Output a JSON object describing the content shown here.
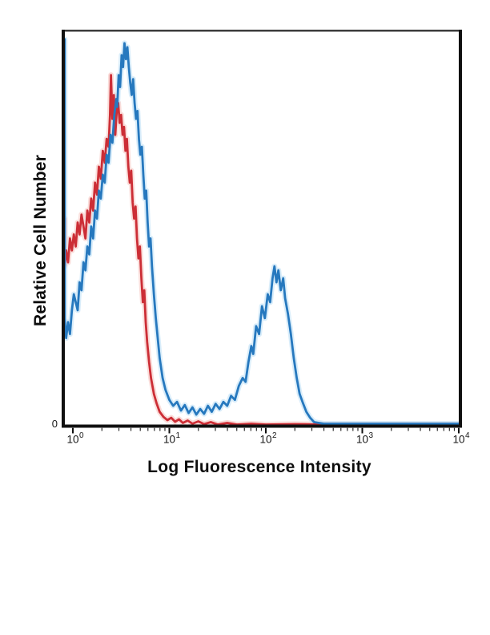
{
  "figure": {
    "xlabel": "Log Fluorescence Intensity",
    "ylabel": "Relative Cell Number",
    "y_zero_label": "0",
    "x_ticks": [
      {
        "base": "10",
        "exp": "0"
      },
      {
        "base": "10",
        "exp": "1"
      },
      {
        "base": "10",
        "exp": "2"
      },
      {
        "base": "10",
        "exp": "3"
      },
      {
        "base": "10",
        "exp": "4"
      }
    ]
  },
  "chart_data": {
    "type": "line",
    "title": "",
    "xlabel": "Log Fluorescence Intensity",
    "ylabel": "Relative Cell Number",
    "x_scale": "log10",
    "x_decades": [
      0,
      4
    ],
    "x_tick_labels": [
      "10^0",
      "10^1",
      "10^2",
      "10^3",
      "10^4"
    ],
    "ylim": [
      0,
      1
    ],
    "y_tick_labels": [
      "0"
    ],
    "grid": false,
    "legend": "none",
    "point_format": "[log10(x), relative_height 0..1]",
    "frame_color": "#101010",
    "series": [
      {
        "name": "red-curve",
        "color": "#cc2e36",
        "halo_color": "#f6c6c2",
        "points": [
          [
            -0.085,
            0.52
          ],
          [
            -0.085,
            0.4
          ],
          [
            -0.07,
            0.44
          ],
          [
            -0.05,
            0.41
          ],
          [
            -0.03,
            0.47
          ],
          [
            -0.01,
            0.44
          ],
          [
            0.01,
            0.48
          ],
          [
            0.03,
            0.45
          ],
          [
            0.05,
            0.51
          ],
          [
            0.07,
            0.48
          ],
          [
            0.09,
            0.53
          ],
          [
            0.11,
            0.5
          ],
          [
            0.13,
            0.47
          ],
          [
            0.15,
            0.54
          ],
          [
            0.17,
            0.51
          ],
          [
            0.19,
            0.57
          ],
          [
            0.21,
            0.54
          ],
          [
            0.23,
            0.61
          ],
          [
            0.25,
            0.58
          ],
          [
            0.27,
            0.65
          ],
          [
            0.29,
            0.62
          ],
          [
            0.31,
            0.69
          ],
          [
            0.33,
            0.66
          ],
          [
            0.35,
            0.72
          ],
          [
            0.37,
            0.7
          ],
          [
            0.385,
            0.78
          ],
          [
            0.395,
            0.88
          ],
          [
            0.41,
            0.77
          ],
          [
            0.425,
            0.83
          ],
          [
            0.44,
            0.73
          ],
          [
            0.455,
            0.79
          ],
          [
            0.47,
            0.81
          ],
          [
            0.485,
            0.76
          ],
          [
            0.5,
            0.78
          ],
          [
            0.515,
            0.73
          ],
          [
            0.53,
            0.75
          ],
          [
            0.545,
            0.69
          ],
          [
            0.56,
            0.72
          ],
          [
            0.575,
            0.65
          ],
          [
            0.59,
            0.61
          ],
          [
            0.605,
            0.64
          ],
          [
            0.62,
            0.56
          ],
          [
            0.635,
            0.52
          ],
          [
            0.65,
            0.55
          ],
          [
            0.665,
            0.47
          ],
          [
            0.68,
            0.42
          ],
          [
            0.695,
            0.45
          ],
          [
            0.71,
            0.37
          ],
          [
            0.725,
            0.31
          ],
          [
            0.74,
            0.34
          ],
          [
            0.755,
            0.26
          ],
          [
            0.77,
            0.21
          ],
          [
            0.79,
            0.16
          ],
          [
            0.81,
            0.12
          ],
          [
            0.84,
            0.08
          ],
          [
            0.87,
            0.055
          ],
          [
            0.9,
            0.035
          ],
          [
            0.94,
            0.022
          ],
          [
            0.98,
            0.014
          ],
          [
            1.02,
            0.02
          ],
          [
            1.06,
            0.01
          ],
          [
            1.1,
            0.016
          ],
          [
            1.14,
            0.007
          ],
          [
            1.19,
            0.013
          ],
          [
            1.24,
            0.005
          ],
          [
            1.3,
            0.011
          ],
          [
            1.36,
            0.004
          ],
          [
            1.43,
            0.009
          ],
          [
            1.5,
            0.003
          ],
          [
            1.6,
            0.007
          ],
          [
            1.7,
            0.003
          ],
          [
            1.85,
            0.005
          ],
          [
            2.0,
            0.003
          ],
          [
            2.3,
            0.004
          ],
          [
            2.6,
            0.003
          ],
          [
            3.0,
            0.003
          ],
          [
            3.5,
            0.003
          ],
          [
            4.0,
            0.003
          ]
        ]
      },
      {
        "name": "blue-curve",
        "color": "#2678be",
        "halo_color": "#bfe1f7",
        "points": [
          [
            -0.085,
            0.97
          ],
          [
            -0.085,
            0.27
          ],
          [
            -0.07,
            0.22
          ],
          [
            -0.05,
            0.26
          ],
          [
            -0.03,
            0.23
          ],
          [
            -0.01,
            0.29
          ],
          [
            0.01,
            0.33
          ],
          [
            0.03,
            0.31
          ],
          [
            0.05,
            0.29
          ],
          [
            0.07,
            0.36
          ],
          [
            0.09,
            0.34
          ],
          [
            0.11,
            0.41
          ],
          [
            0.13,
            0.39
          ],
          [
            0.15,
            0.45
          ],
          [
            0.17,
            0.43
          ],
          [
            0.19,
            0.5
          ],
          [
            0.21,
            0.47
          ],
          [
            0.23,
            0.54
          ],
          [
            0.25,
            0.52
          ],
          [
            0.27,
            0.59
          ],
          [
            0.29,
            0.57
          ],
          [
            0.31,
            0.63
          ],
          [
            0.33,
            0.61
          ],
          [
            0.35,
            0.68
          ],
          [
            0.37,
            0.66
          ],
          [
            0.39,
            0.73
          ],
          [
            0.41,
            0.71
          ],
          [
            0.43,
            0.78
          ],
          [
            0.45,
            0.82
          ],
          [
            0.46,
            0.8
          ],
          [
            0.475,
            0.88
          ],
          [
            0.49,
            0.85
          ],
          [
            0.505,
            0.93
          ],
          [
            0.52,
            0.9
          ],
          [
            0.535,
            0.96
          ],
          [
            0.55,
            0.92
          ],
          [
            0.565,
            0.95
          ],
          [
            0.58,
            0.9
          ],
          [
            0.595,
            0.86
          ],
          [
            0.61,
            0.83
          ],
          [
            0.625,
            0.87
          ],
          [
            0.64,
            0.81
          ],
          [
            0.655,
            0.77
          ],
          [
            0.67,
            0.79
          ],
          [
            0.685,
            0.72
          ],
          [
            0.7,
            0.68
          ],
          [
            0.715,
            0.7
          ],
          [
            0.73,
            0.63
          ],
          [
            0.745,
            0.57
          ],
          [
            0.76,
            0.59
          ],
          [
            0.775,
            0.51
          ],
          [
            0.79,
            0.45
          ],
          [
            0.805,
            0.47
          ],
          [
            0.82,
            0.4
          ],
          [
            0.84,
            0.33
          ],
          [
            0.86,
            0.27
          ],
          [
            0.88,
            0.22
          ],
          [
            0.9,
            0.17
          ],
          [
            0.93,
            0.12
          ],
          [
            0.96,
            0.09
          ],
          [
            1.0,
            0.065
          ],
          [
            1.04,
            0.05
          ],
          [
            1.08,
            0.06
          ],
          [
            1.12,
            0.038
          ],
          [
            1.16,
            0.052
          ],
          [
            1.2,
            0.032
          ],
          [
            1.24,
            0.046
          ],
          [
            1.28,
            0.028
          ],
          [
            1.32,
            0.042
          ],
          [
            1.36,
            0.03
          ],
          [
            1.4,
            0.05
          ],
          [
            1.44,
            0.035
          ],
          [
            1.48,
            0.055
          ],
          [
            1.52,
            0.042
          ],
          [
            1.56,
            0.06
          ],
          [
            1.6,
            0.05
          ],
          [
            1.64,
            0.075
          ],
          [
            1.68,
            0.065
          ],
          [
            1.72,
            0.1
          ],
          [
            1.76,
            0.12
          ],
          [
            1.79,
            0.11
          ],
          [
            1.82,
            0.16
          ],
          [
            1.85,
            0.2
          ],
          [
            1.87,
            0.18
          ],
          [
            1.9,
            0.25
          ],
          [
            1.93,
            0.23
          ],
          [
            1.96,
            0.3
          ],
          [
            1.99,
            0.27
          ],
          [
            2.02,
            0.33
          ],
          [
            2.045,
            0.31
          ],
          [
            2.07,
            0.37
          ],
          [
            2.09,
            0.4
          ],
          [
            2.11,
            0.36
          ],
          [
            2.13,
            0.39
          ],
          [
            2.155,
            0.34
          ],
          [
            2.18,
            0.37
          ],
          [
            2.2,
            0.32
          ],
          [
            2.23,
            0.28
          ],
          [
            2.26,
            0.23
          ],
          [
            2.29,
            0.17
          ],
          [
            2.32,
            0.12
          ],
          [
            2.35,
            0.08
          ],
          [
            2.38,
            0.06
          ],
          [
            2.42,
            0.035
          ],
          [
            2.46,
            0.02
          ],
          [
            2.5,
            0.009
          ],
          [
            2.6,
            0.005
          ],
          [
            3.0,
            0.005
          ],
          [
            3.5,
            0.005
          ],
          [
            4.0,
            0.005
          ]
        ]
      }
    ]
  }
}
